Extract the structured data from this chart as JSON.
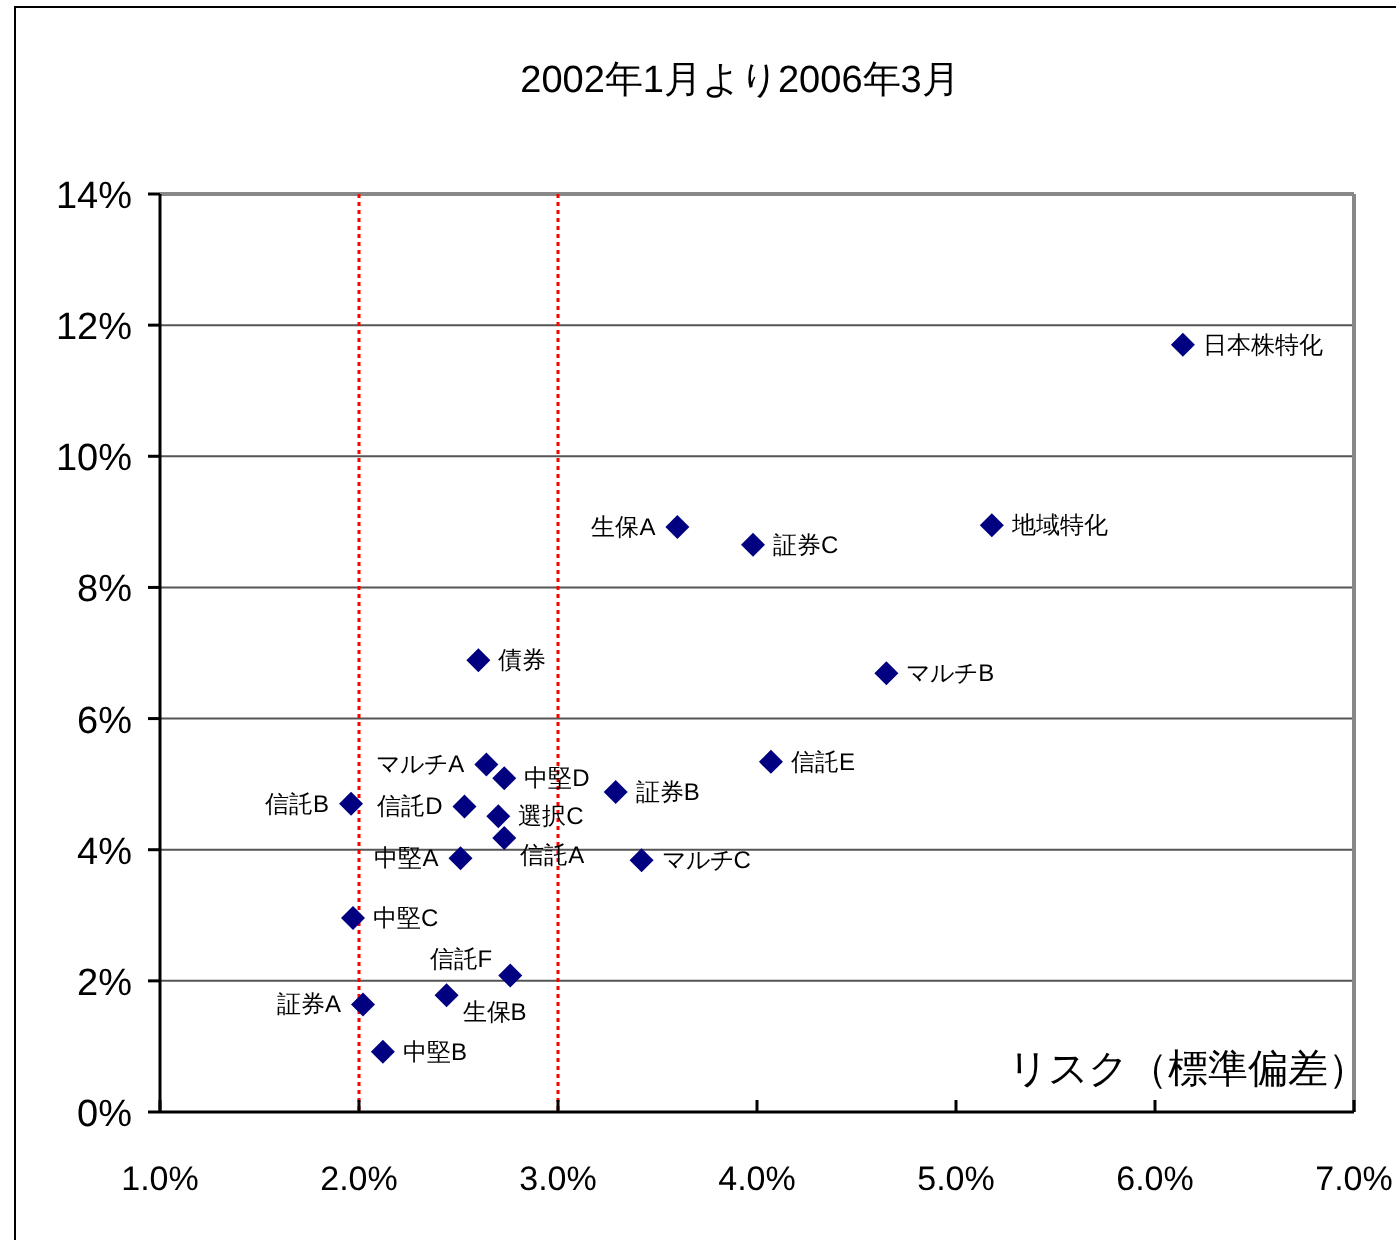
{
  "chart_data": {
    "type": "scatter",
    "title": "2002年1月より2006年3月",
    "xlabel": "リスク（標準偏差）",
    "xlim": [
      1,
      7
    ],
    "xticks": [
      {
        "value": 1,
        "label": "1.0%"
      },
      {
        "value": 2,
        "label": "2.0%"
      },
      {
        "value": 3,
        "label": "3.0%"
      },
      {
        "value": 4,
        "label": "4.0%"
      },
      {
        "value": 5,
        "label": "5.0%"
      },
      {
        "value": 6,
        "label": "6.0%"
      },
      {
        "value": 7,
        "label": "7.0%"
      }
    ],
    "ylim": [
      0,
      14
    ],
    "yticks": [
      {
        "value": 0,
        "label": "0%"
      },
      {
        "value": 2,
        "label": "2%"
      },
      {
        "value": 4,
        "label": "4%"
      },
      {
        "value": 6,
        "label": "6%"
      },
      {
        "value": 8,
        "label": "8%"
      },
      {
        "value": 10,
        "label": "10%"
      },
      {
        "value": 12,
        "label": "12%"
      },
      {
        "value": 14,
        "label": "14%"
      }
    ],
    "grid": "y",
    "marker": "diamond",
    "ref_lines": [
      {
        "axis": "x",
        "value": 2,
        "color": "#ff0000",
        "line_style": "dotted"
      },
      {
        "axis": "x",
        "value": 3,
        "color": "#ff0000",
        "line_style": "dotted"
      }
    ],
    "series": [
      {
        "name": "日本株特化",
        "color": "#000080",
        "x": [
          6.14
        ],
        "values": [
          11.7
        ]
      },
      {
        "name": "地域特化",
        "color": "#000080",
        "x": [
          5.18
        ],
        "values": [
          8.95
        ]
      },
      {
        "name": "マルチB",
        "color": "#000080",
        "x": [
          4.65
        ],
        "values": [
          6.69
        ]
      },
      {
        "name": "生保A",
        "color": "#000080",
        "x": [
          3.6
        ],
        "values": [
          8.92
        ]
      },
      {
        "name": "証券C",
        "color": "#000080",
        "x": [
          3.98
        ],
        "values": [
          8.65
        ]
      },
      {
        "name": "債券",
        "color": "#000080",
        "x": [
          2.6
        ],
        "values": [
          6.89
        ]
      },
      {
        "name": "信託E",
        "color": "#000080",
        "x": [
          4.07
        ],
        "values": [
          5.34
        ]
      },
      {
        "name": "マルチA",
        "color": "#000080",
        "x": [
          2.64
        ],
        "values": [
          5.3
        ]
      },
      {
        "name": "中堅D",
        "color": "#000080",
        "x": [
          2.73
        ],
        "values": [
          5.09
        ]
      },
      {
        "name": "証券B",
        "color": "#000080",
        "x": [
          3.29
        ],
        "values": [
          4.88
        ]
      },
      {
        "name": "信託B",
        "color": "#000080",
        "x": [
          1.96
        ],
        "values": [
          4.7
        ]
      },
      {
        "name": "信託D",
        "color": "#000080",
        "x": [
          2.53
        ],
        "values": [
          4.66
        ]
      },
      {
        "name": "選択C",
        "color": "#000080",
        "x": [
          2.7
        ],
        "values": [
          4.51
        ]
      },
      {
        "name": "信託A",
        "color": "#000080",
        "x": [
          2.73
        ],
        "values": [
          4.18
        ]
      },
      {
        "name": "中堅A",
        "color": "#000080",
        "x": [
          2.51
        ],
        "values": [
          3.87
        ]
      },
      {
        "name": "マルチC",
        "color": "#000080",
        "x": [
          3.42
        ],
        "values": [
          3.84
        ]
      },
      {
        "name": "中堅C",
        "color": "#000080",
        "x": [
          1.97
        ],
        "values": [
          2.96
        ]
      },
      {
        "name": "信託F",
        "color": "#000080",
        "x": [
          2.76
        ],
        "values": [
          2.08
        ]
      },
      {
        "name": "生保B",
        "color": "#000080",
        "x": [
          2.44
        ],
        "values": [
          1.78
        ]
      },
      {
        "name": "証券A",
        "color": "#000080",
        "x": [
          2.02
        ],
        "values": [
          1.64
        ]
      },
      {
        "name": "中堅B",
        "color": "#000080",
        "x": [
          2.12
        ],
        "values": [
          0.92
        ]
      }
    ]
  }
}
